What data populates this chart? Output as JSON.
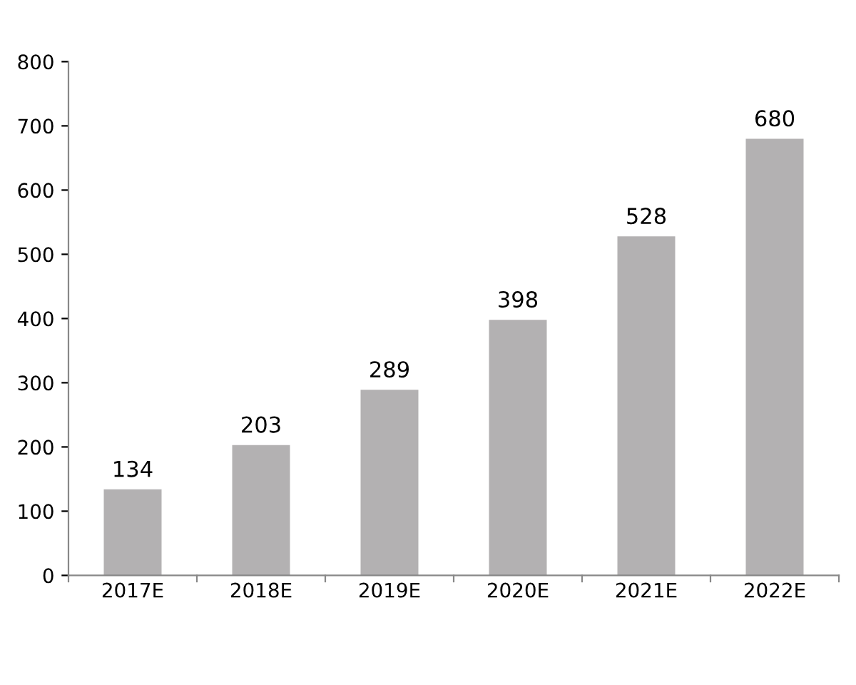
{
  "chart_data": {
    "type": "bar",
    "categories": [
      "2017E",
      "2018E",
      "2019E",
      "2020E",
      "2021E",
      "2022E"
    ],
    "values": [
      134,
      203,
      289,
      398,
      528,
      680
    ],
    "color": "#b3b1b2",
    "ylim": [
      0,
      800
    ],
    "yticks": [
      0,
      100,
      200,
      300,
      400,
      500,
      600,
      700,
      800
    ],
    "grid": false,
    "data_labels": true
  }
}
